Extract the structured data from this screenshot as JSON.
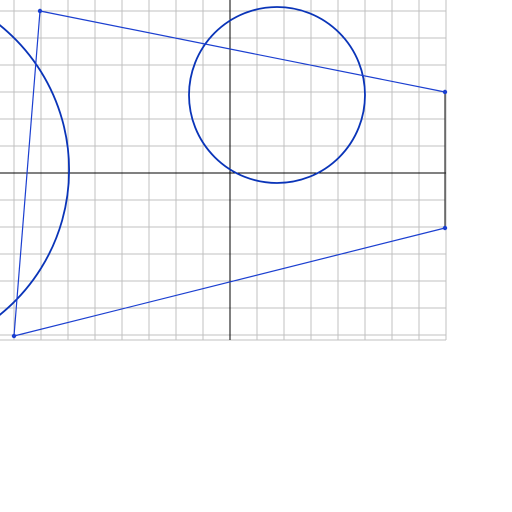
{
  "construction": {
    "grid": true,
    "grid_color": "#c0c0c0",
    "axis_color": "#000000",
    "shape_color": "#0033bb",
    "point_color": "#1a3fd0",
    "segment_color": "#222222"
  }
}
